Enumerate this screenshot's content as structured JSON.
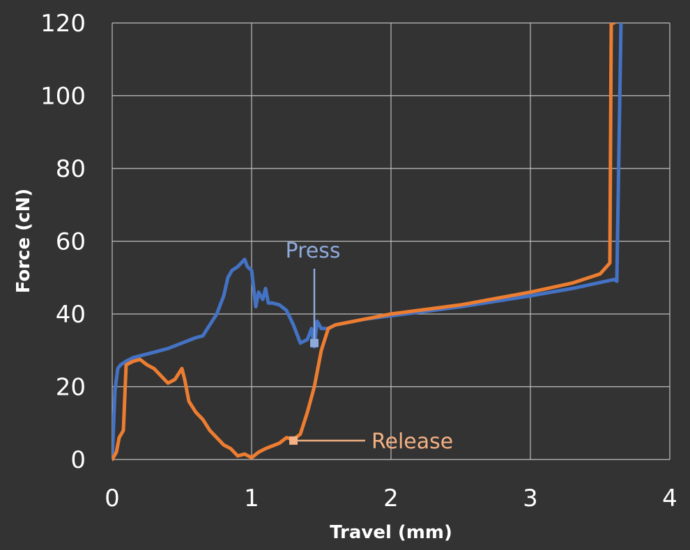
{
  "chart_data": {
    "type": "line",
    "title": "",
    "xlabel": "Travel (mm)",
    "ylabel": "Force (cN)",
    "xlim": [
      0,
      4
    ],
    "ylim": [
      0,
      120
    ],
    "x_ticks": [
      "0",
      "1",
      "2",
      "3",
      "4"
    ],
    "y_ticks": [
      "0",
      "20",
      "40",
      "60",
      "80",
      "100",
      "120"
    ],
    "grid": true,
    "background": "#333333",
    "grid_color": "#bfbfbf",
    "series": [
      {
        "name": "Press",
        "color": "#4472c4",
        "x": [
          0,
          0.02,
          0.04,
          0.06,
          0.1,
          0.15,
          0.2,
          0.3,
          0.4,
          0.5,
          0.6,
          0.65,
          0.7,
          0.75,
          0.8,
          0.83,
          0.86,
          0.9,
          0.95,
          0.97,
          1.0,
          1.03,
          1.05,
          1.08,
          1.1,
          1.12,
          1.15,
          1.2,
          1.25,
          1.3,
          1.35,
          1.4,
          1.43,
          1.45,
          1.47,
          1.5,
          1.55,
          1.6,
          1.8,
          2.0,
          2.5,
          3.0,
          3.3,
          3.6,
          3.62,
          3.65
        ],
        "y": [
          0,
          19,
          25,
          26,
          27,
          28,
          28.5,
          29.5,
          30.5,
          32,
          33.5,
          34,
          37,
          40,
          45,
          50,
          52,
          53,
          55,
          53,
          52,
          42,
          46,
          44,
          47,
          43,
          43,
          42.5,
          41,
          37,
          32,
          33,
          36,
          31,
          38,
          36,
          36,
          37,
          38.5,
          39.5,
          42,
          45,
          47,
          49.5,
          49,
          120
        ]
      },
      {
        "name": "Release",
        "color": "#ed7d31",
        "x": [
          0,
          0.03,
          0.05,
          0.08,
          0.1,
          0.15,
          0.2,
          0.25,
          0.3,
          0.4,
          0.45,
          0.5,
          0.52,
          0.55,
          0.6,
          0.65,
          0.7,
          0.75,
          0.8,
          0.85,
          0.9,
          0.95,
          1.0,
          1.05,
          1.1,
          1.2,
          1.25,
          1.3,
          1.35,
          1.4,
          1.45,
          1.5,
          1.55,
          1.6,
          1.8,
          2.0,
          2.5,
          3.0,
          3.3,
          3.5,
          3.57,
          3.58,
          3.6
        ],
        "y": [
          0,
          2,
          6,
          8,
          26,
          27,
          27.5,
          26,
          25,
          21,
          22,
          25,
          22,
          16,
          13,
          11,
          8,
          6,
          4,
          3,
          1,
          1.5,
          0.5,
          2,
          3,
          4.5,
          6,
          5.5,
          7,
          13,
          20,
          30,
          36,
          37,
          38.5,
          40,
          42.5,
          46,
          48.5,
          51,
          54,
          120,
          120
        ]
      }
    ],
    "annotations": [
      {
        "text": "Press",
        "series": "Press",
        "x": 1.45,
        "y": 32,
        "color": "#8faadc"
      },
      {
        "text": "Release",
        "series": "Release",
        "x": 1.3,
        "y": 5.2,
        "color": "#f4b183"
      }
    ]
  }
}
